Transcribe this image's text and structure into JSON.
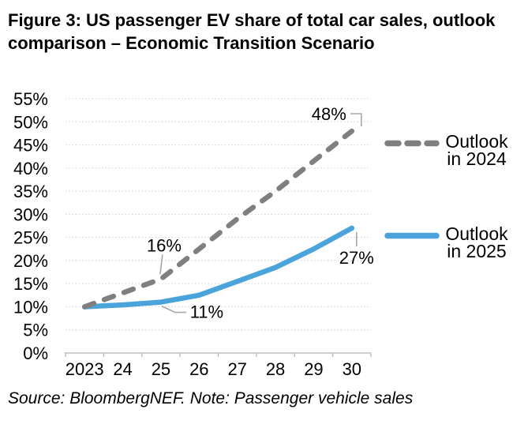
{
  "title": {
    "line1": "Figure 3:  US passenger EV share of total car sales, outlook",
    "line2": "comparison – Economic Transition Scenario"
  },
  "footer": {
    "source": "Source: BloombergNEF. Note: Passenger vehicle sales"
  },
  "chart_data": {
    "type": "line",
    "title": "US passenger EV share of total car sales, outlook comparison – Economic Transition Scenario",
    "categories": [
      "2023",
      "24",
      "25",
      "26",
      "27",
      "28",
      "29",
      "30"
    ],
    "series": [
      {
        "name": "Outlook in 2024",
        "style": "dashed",
        "color": "#7f7f7f",
        "values": [
          10,
          13,
          16,
          22.5,
          29,
          35,
          41.5,
          48
        ]
      },
      {
        "name": "Outlook in 2025",
        "style": "solid",
        "color": "#4ba3dc",
        "values": [
          10,
          10.4,
          11,
          12.5,
          15.5,
          18.5,
          22.5,
          27
        ]
      }
    ],
    "y_axis": {
      "min": 0,
      "max": 55,
      "step": 5,
      "suffix": "%"
    },
    "ylim": [
      0,
      55
    ],
    "xlabel": "",
    "ylabel": "",
    "grid": "horizontal-dotted",
    "legend_position": "right",
    "annotations": [
      {
        "label": "48%",
        "value": 48,
        "year": "2030",
        "series": 0,
        "point": 7,
        "placement": "elbow-up-right"
      },
      {
        "label": "16%",
        "value": 16,
        "year": "2025",
        "series": 0,
        "point": 2,
        "placement": "above"
      },
      {
        "label": "11%",
        "value": 11,
        "year": "2025",
        "series": 1,
        "point": 2,
        "placement": "below-right"
      },
      {
        "label": "27%",
        "value": 27,
        "year": "2030",
        "series": 1,
        "point": 7,
        "placement": "below"
      }
    ],
    "colors": {
      "grid": "#d9d9d9",
      "axis": "#bfbfbf",
      "leader": "#a6a6a6",
      "text": "#000000"
    }
  }
}
